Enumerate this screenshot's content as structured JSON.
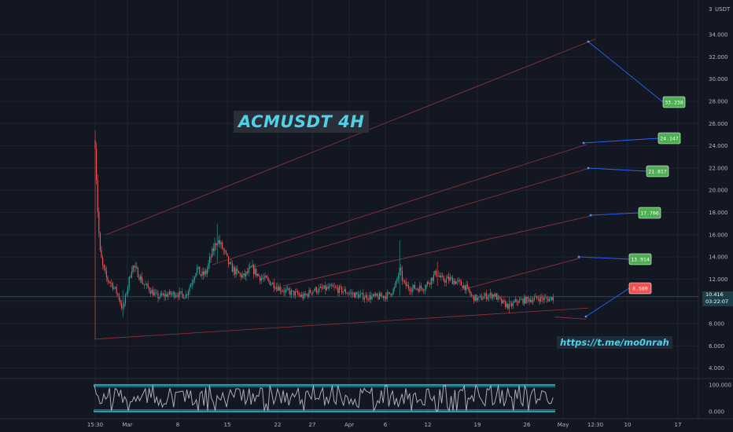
{
  "chart_data": {
    "type": "candlestick",
    "title": "ACMUSDT 4H",
    "link": "https://t.me/mo0nrah",
    "currency": "USDT",
    "x_ticks": [
      "15:30",
      "Mar",
      "8",
      "15",
      "22",
      "27",
      "Apr",
      "6",
      "12",
      "19",
      "26",
      "May",
      "12:30",
      "10",
      "17"
    ],
    "y_ticks": [
      "34.000",
      "32.000",
      "30.000",
      "28.000",
      "26.000",
      "24.000",
      "22.000",
      "20.000",
      "18.000",
      "16.000",
      "14.000",
      "12.000",
      "10.000",
      "8.000",
      "6.000",
      "4.000"
    ],
    "y_top_tick": "3",
    "ylim": [
      3.5,
      35
    ],
    "current_price": "10.416",
    "countdown": "03:22:07",
    "targets": [
      {
        "label": "33.238",
        "color": "#4caf50"
      },
      {
        "label": "24.147",
        "color": "#4caf50"
      },
      {
        "label": "21.817",
        "color": "#4caf50"
      },
      {
        "label": "17.706",
        "color": "#4caf50"
      },
      {
        "label": "13.914",
        "color": "#4caf50"
      },
      {
        "label": "8.569",
        "color": "#ef5350"
      }
    ],
    "oscillator": {
      "ticks": [
        "100.000",
        "0.000"
      ],
      "range": [
        0,
        100
      ]
    }
  }
}
